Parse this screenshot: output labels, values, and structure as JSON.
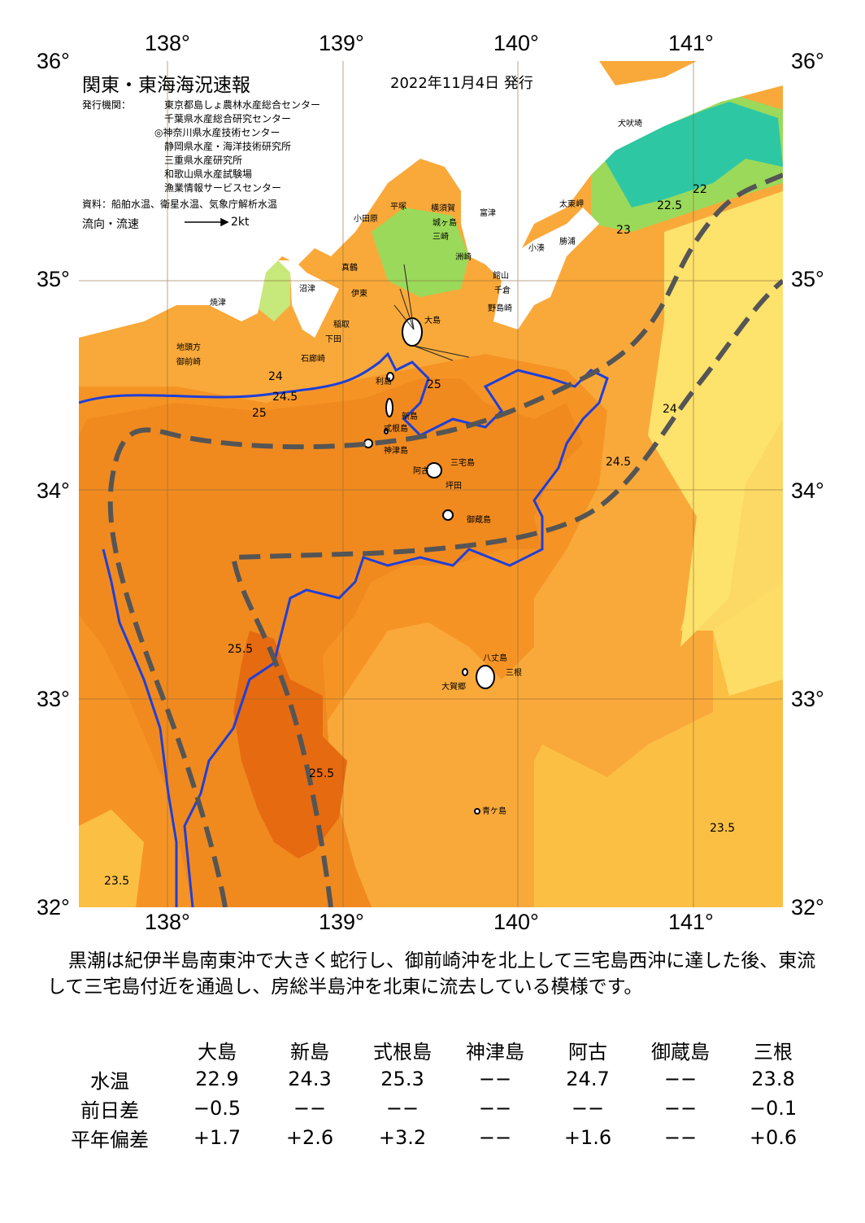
{
  "map": {
    "title": "関東・東海海況速報",
    "date": "2022年11月4日 発行",
    "issuer_label": "発行機関：",
    "issuers": [
      "東京都島しょ農林水産総合センター",
      "千葉県水産総合研究センター",
      "◎神奈川県水産技術センター",
      "静岡県水産・海洋技術研究所",
      "三重県水産研究所",
      "和歌山県水産試験場",
      "漁業情報サービスセンター"
    ],
    "source": "資料：船舶水温、衛星水温、気象庁解析水温",
    "flow_label": "流向・流速",
    "flow_scale": "2kt",
    "lon_ticks": [
      "138°",
      "139°",
      "140°",
      "141°"
    ],
    "lat_ticks": [
      "36°",
      "35°",
      "34°",
      "33°",
      "32°"
    ],
    "places": [
      "犬吠埼",
      "太東岬",
      "勝浦",
      "小湊",
      "洲崎",
      "館山",
      "千倉",
      "野島崎",
      "富津",
      "横須賀",
      "城ヶ島",
      "三崎",
      "平塚",
      "小田原",
      "真鶴",
      "沼津",
      "伊東",
      "稲取",
      "下田",
      "石廊崎",
      "御前崎",
      "地頭方",
      "焼津",
      "大島",
      "利島",
      "新島",
      "式根島",
      "神津島",
      "三宅島",
      "阿古",
      "坪田",
      "御蔵島",
      "八丈島",
      "三根",
      "大賀郷",
      "青ケ島"
    ],
    "contour_labels": [
      "24",
      "24.5",
      "25",
      "25.5",
      "23.5",
      "22.5",
      "22",
      "23",
      "24",
      "24.5",
      "25",
      "25.5",
      "23.5"
    ],
    "colors": {
      "t_23": "#fde26c",
      "t_23_5": "#fbbf44",
      "t_24": "#f9a93a",
      "t_24_5": "#f59425",
      "t_25": "#f08a1f",
      "t_25_5": "#e66a10",
      "cold_green": "#9bd95a",
      "cold_teal": "#2ec7a4",
      "kuroshio_axis": "#555555",
      "isotherm_25": "#1f3fd8",
      "land": "#ffffff"
    }
  },
  "summary": "黒潮は紀伊半島南東沖で大きく蛇行し、御前崎沖を北上して三宅島西沖に達した後、東流して三宅島付近を通過し、房総半島沖を北東に流去している模様です。",
  "table": {
    "columns": [
      "大島",
      "新島",
      "式根島",
      "神津島",
      "阿古",
      "御蔵島",
      "三根"
    ],
    "rows": [
      {
        "label": "水温",
        "values": [
          "22.9",
          "24.3",
          "25.3",
          "−−",
          "24.7",
          "−−",
          "23.8"
        ]
      },
      {
        "label": "前日差",
        "values": [
          "−0.5",
          "−−",
          "−−",
          "−−",
          "−−",
          "−−",
          "−0.1"
        ]
      },
      {
        "label": "平年偏差",
        "values": [
          "+1.7",
          "+2.6",
          "+3.2",
          "−−",
          "+1.6",
          "−−",
          "+0.6"
        ]
      }
    ]
  }
}
